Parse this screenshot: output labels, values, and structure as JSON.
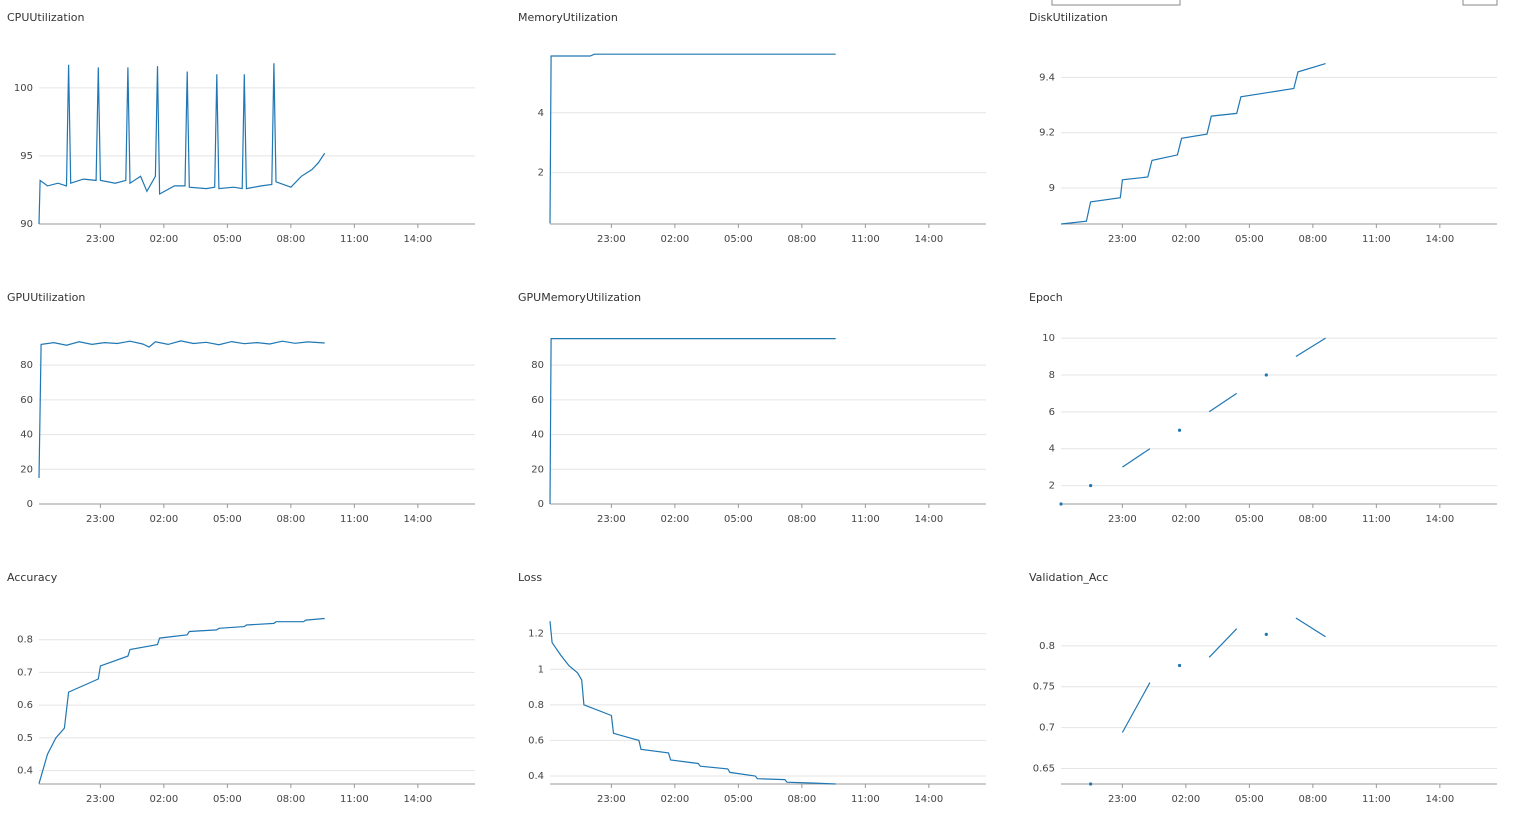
{
  "chart_data": [
    {
      "type": "line",
      "title": "CPUUtilization",
      "color": "#1f77b4",
      "grid": true,
      "x": [
        20.1,
        20.15,
        20.5,
        21.0,
        21.4,
        21.5,
        21.6,
        22.2,
        22.8,
        22.9,
        23.0,
        23.7,
        24.2,
        24.3,
        24.4,
        24.9,
        25.2,
        25.6,
        25.7,
        25.8,
        26.5,
        27.0,
        27.1,
        27.2,
        28.0,
        28.4,
        28.5,
        28.6,
        29.3,
        29.7,
        29.8,
        29.9,
        30.6,
        31.1,
        31.2,
        31.3,
        32.0,
        32.5,
        33.0,
        33.3,
        33.6
      ],
      "values": [
        90,
        93.2,
        92.8,
        93,
        92.8,
        101.7,
        93,
        93.3,
        93.2,
        101.5,
        93.2,
        93,
        93.2,
        101.5,
        93,
        93.5,
        92.4,
        93.5,
        101.6,
        92.2,
        92.8,
        92.8,
        101.2,
        92.7,
        92.6,
        92.7,
        101,
        92.6,
        92.7,
        92.6,
        101,
        92.6,
        92.8,
        92.9,
        101.8,
        93.1,
        92.7,
        93.5,
        94,
        94.5,
        95.2
      ],
      "xlim": [
        20.1,
        40.7
      ],
      "xticks": [
        {
          "value": 23,
          "label": "23:00"
        },
        {
          "value": 26,
          "label": "02:00"
        },
        {
          "value": 29,
          "label": "05:00"
        },
        {
          "value": 32,
          "label": "08:00"
        },
        {
          "value": 35,
          "label": "11:00"
        },
        {
          "value": 38,
          "label": "14:00"
        }
      ],
      "ylim": [
        90,
        103
      ],
      "yticks": [
        90,
        95,
        100
      ]
    },
    {
      "type": "line",
      "title": "MemoryUtilization",
      "color": "#1f77b4",
      "grid": true,
      "x": [
        20.1,
        20.15,
        22.0,
        22.2,
        33.6
      ],
      "values": [
        0.3,
        5.9,
        5.9,
        5.96,
        5.96
      ],
      "xlim": [
        20.1,
        40.7
      ],
      "xticks": [
        {
          "value": 23,
          "label": "23:00"
        },
        {
          "value": 26,
          "label": "02:00"
        },
        {
          "value": 29,
          "label": "05:00"
        },
        {
          "value": 32,
          "label": "08:00"
        },
        {
          "value": 35,
          "label": "11:00"
        },
        {
          "value": 38,
          "label": "14:00"
        }
      ],
      "ylim": [
        0.28,
        6.2
      ],
      "yticks": [
        2,
        4
      ]
    },
    {
      "type": "line",
      "title": "DiskUtilization",
      "color": "#1f77b4",
      "grid": true,
      "x": [
        20.1,
        21.3,
        21.5,
        22.9,
        23.0,
        24.2,
        24.4,
        25.6,
        25.8,
        27.0,
        27.2,
        28.4,
        28.6,
        31.1,
        31.3,
        32.6
      ],
      "values": [
        8.87,
        8.88,
        8.95,
        8.965,
        9.03,
        9.04,
        9.1,
        9.12,
        9.18,
        9.195,
        9.26,
        9.27,
        9.33,
        9.36,
        9.42,
        9.45
      ],
      "xlim": [
        20.1,
        40.7
      ],
      "xticks": [
        {
          "value": 23,
          "label": "23:00"
        },
        {
          "value": 26,
          "label": "02:00"
        },
        {
          "value": 29,
          "label": "05:00"
        },
        {
          "value": 32,
          "label": "08:00"
        },
        {
          "value": 35,
          "label": "11:00"
        },
        {
          "value": 38,
          "label": "14:00"
        }
      ],
      "ylim": [
        8.87,
        9.51
      ],
      "yticks": [
        9,
        9.2,
        9.4
      ]
    },
    {
      "type": "line",
      "title": "GPUUtilization",
      "color": "#1f77b4",
      "grid": true,
      "x": [
        20.1,
        20.2,
        20.8,
        21.4,
        22.0,
        22.6,
        23.2,
        23.8,
        24.4,
        25.0,
        25.3,
        25.6,
        26.2,
        26.8,
        27.4,
        28.0,
        28.6,
        29.2,
        29.8,
        30.4,
        31.0,
        31.6,
        32.2,
        32.8,
        33.6
      ],
      "values": [
        15,
        92,
        93,
        91.5,
        93.5,
        92,
        93,
        92.5,
        93.8,
        92.2,
        90.5,
        93.5,
        92,
        94,
        92.5,
        93.2,
        91.8,
        93.6,
        92.4,
        93,
        92.2,
        93.8,
        92.6,
        93.4,
        92.8
      ],
      "xlim": [
        20.1,
        40.7
      ],
      "xticks": [
        {
          "value": 23,
          "label": "23:00"
        },
        {
          "value": 26,
          "label": "02:00"
        },
        {
          "value": 29,
          "label": "05:00"
        },
        {
          "value": 32,
          "label": "08:00"
        },
        {
          "value": 35,
          "label": "11:00"
        },
        {
          "value": 38,
          "label": "14:00"
        }
      ],
      "ylim": [
        0,
        102
      ],
      "yticks": [
        0,
        20,
        40,
        60,
        80
      ]
    },
    {
      "type": "line",
      "title": "GPUMemoryUtilization",
      "color": "#1f77b4",
      "grid": true,
      "x": [
        20.1,
        20.15,
        33.6
      ],
      "values": [
        0,
        95.3,
        95.3
      ],
      "xlim": [
        20.1,
        40.7
      ],
      "xticks": [
        {
          "value": 23,
          "label": "23:00"
        },
        {
          "value": 26,
          "label": "02:00"
        },
        {
          "value": 29,
          "label": "05:00"
        },
        {
          "value": 32,
          "label": "08:00"
        },
        {
          "value": 35,
          "label": "11:00"
        },
        {
          "value": 38,
          "label": "14:00"
        }
      ],
      "ylim": [
        0,
        102
      ],
      "yticks": [
        0,
        20,
        40,
        60,
        80
      ]
    },
    {
      "type": "line",
      "title": "Epoch",
      "color": "#1f77b4",
      "grid": true,
      "x": [
        20.1,
        null,
        21.5,
        null,
        23.0,
        24.3,
        null,
        25.7,
        null,
        27.1,
        28.4,
        null,
        29.8,
        null,
        31.2,
        32.6
      ],
      "values": [
        1,
        null,
        2,
        null,
        3,
        4,
        null,
        5,
        null,
        6,
        7,
        null,
        8,
        null,
        9,
        10
      ],
      "xlim": [
        20.1,
        40.7
      ],
      "xticks": [
        {
          "value": 23,
          "label": "23:00"
        },
        {
          "value": 26,
          "label": "02:00"
        },
        {
          "value": 29,
          "label": "05:00"
        },
        {
          "value": 32,
          "label": "08:00"
        },
        {
          "value": 35,
          "label": "11:00"
        },
        {
          "value": 38,
          "label": "14:00"
        }
      ],
      "ylim": [
        1,
        10.6
      ],
      "yticks": [
        2,
        4,
        6,
        8,
        10
      ]
    },
    {
      "type": "line",
      "title": "Accuracy",
      "color": "#1f77b4",
      "grid": true,
      "x": [
        20.1,
        20.5,
        20.9,
        21.3,
        21.5,
        22.9,
        23.0,
        24.3,
        24.4,
        25.7,
        25.8,
        27.1,
        27.2,
        28.5,
        28.6,
        29.8,
        29.9,
        31.2,
        31.3,
        32.6,
        32.7,
        33.6
      ],
      "values": [
        0.36,
        0.45,
        0.5,
        0.53,
        0.64,
        0.68,
        0.72,
        0.75,
        0.77,
        0.785,
        0.805,
        0.815,
        0.825,
        0.83,
        0.835,
        0.84,
        0.845,
        0.85,
        0.855,
        0.855,
        0.86,
        0.865
      ],
      "xlim": [
        20.1,
        40.7
      ],
      "xticks": [
        {
          "value": 23,
          "label": "23:00"
        },
        {
          "value": 26,
          "label": "02:00"
        },
        {
          "value": 29,
          "label": "05:00"
        },
        {
          "value": 32,
          "label": "08:00"
        },
        {
          "value": 35,
          "label": "11:00"
        },
        {
          "value": 38,
          "label": "14:00"
        }
      ],
      "ylim": [
        0.359,
        0.9
      ],
      "yticks": [
        0.4,
        0.5,
        0.6,
        0.7,
        0.8
      ]
    },
    {
      "type": "line",
      "title": "Loss",
      "color": "#1f77b4",
      "grid": true,
      "x": [
        20.1,
        20.2,
        20.6,
        21.0,
        21.4,
        21.6,
        21.7,
        23.0,
        23.1,
        24.3,
        24.4,
        25.7,
        25.8,
        27.1,
        27.2,
        28.5,
        28.6,
        29.8,
        29.9,
        31.2,
        31.3,
        32.6,
        33.6
      ],
      "values": [
        1.27,
        1.15,
        1.08,
        1.02,
        0.98,
        0.94,
        0.8,
        0.74,
        0.64,
        0.6,
        0.55,
        0.53,
        0.49,
        0.47,
        0.455,
        0.44,
        0.42,
        0.4,
        0.385,
        0.38,
        0.365,
        0.36,
        0.355
      ],
      "xlim": [
        20.1,
        40.7
      ],
      "xticks": [
        {
          "value": 23,
          "label": "23:00"
        },
        {
          "value": 26,
          "label": "02:00"
        },
        {
          "value": 29,
          "label": "05:00"
        },
        {
          "value": 32,
          "label": "08:00"
        },
        {
          "value": 35,
          "label": "11:00"
        },
        {
          "value": 38,
          "label": "14:00"
        }
      ],
      "ylim": [
        0.355,
        1.35
      ],
      "yticks": [
        0.4,
        0.6,
        0.8,
        1,
        1.2
      ]
    },
    {
      "type": "line",
      "title": "Validation_Acc",
      "color": "#1f77b4",
      "grid": true,
      "x": [
        21.5,
        null,
        23.0,
        24.3,
        null,
        25.7,
        null,
        27.1,
        28.4,
        null,
        29.8,
        null,
        31.2,
        32.6
      ],
      "values": [
        0.631,
        null,
        0.694,
        0.755,
        null,
        0.776,
        null,
        0.786,
        0.821,
        null,
        0.814,
        null,
        0.834,
        0.811
      ],
      "xlim": [
        20.1,
        40.7
      ],
      "xticks": [
        {
          "value": 23,
          "label": "23:00"
        },
        {
          "value": 26,
          "label": "02:00"
        },
        {
          "value": 29,
          "label": "05:00"
        },
        {
          "value": 32,
          "label": "08:00"
        },
        {
          "value": 35,
          "label": "11:00"
        },
        {
          "value": 38,
          "label": "14:00"
        }
      ],
      "ylim": [
        0.631,
        0.8475
      ],
      "yticks": [
        0.65,
        0.7,
        0.75,
        0.8
      ]
    }
  ]
}
